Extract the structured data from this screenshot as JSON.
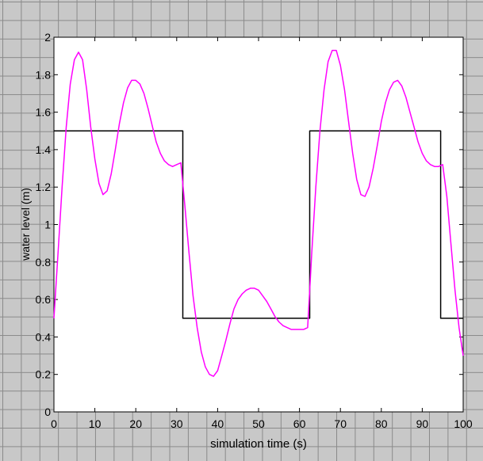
{
  "chart_data": {
    "type": "line",
    "xlabel": "simulation time (s)",
    "ylabel": "water level (m)",
    "xlim": [
      0,
      100
    ],
    "ylim": [
      0,
      2
    ],
    "x_ticks": [
      0,
      10,
      20,
      30,
      40,
      50,
      60,
      70,
      80,
      90,
      100
    ],
    "y_ticks": [
      0,
      0.2,
      0.4,
      0.6,
      0.8,
      1,
      1.2,
      1.4,
      1.6,
      1.8,
      2
    ],
    "grid": false,
    "series": [
      {
        "color": "#000000",
        "style": "step",
        "x": [
          0,
          31.5,
          31.5,
          62.5,
          62.5,
          94.5,
          94.5,
          100
        ],
        "y": [
          1.5,
          1.5,
          0.5,
          0.5,
          1.5,
          1.5,
          0.5,
          0.5
        ]
      },
      {
        "color": "#ff00ff",
        "style": "line",
        "x": [
          0,
          1,
          2,
          3,
          4,
          5,
          6,
          7,
          8,
          9,
          10,
          11,
          12,
          13,
          14,
          15,
          16,
          17,
          18,
          19,
          20,
          21,
          22,
          23,
          24,
          25,
          26,
          27,
          28,
          29,
          30,
          31,
          32,
          33,
          34,
          35,
          36,
          37,
          38,
          39,
          40,
          41,
          42,
          43,
          44,
          45,
          46,
          47,
          48,
          49,
          50,
          51,
          52,
          53,
          54,
          55,
          56,
          57,
          58,
          59,
          60,
          61,
          62,
          63,
          64,
          65,
          66,
          67,
          68,
          69,
          70,
          71,
          72,
          73,
          74,
          75,
          76,
          77,
          78,
          79,
          80,
          81,
          82,
          83,
          84,
          85,
          86,
          87,
          88,
          89,
          90,
          91,
          92,
          93,
          94,
          95,
          96,
          97,
          98,
          99,
          100
        ],
        "y": [
          0.5,
          0.85,
          1.2,
          1.52,
          1.75,
          1.88,
          1.92,
          1.88,
          1.72,
          1.52,
          1.35,
          1.22,
          1.16,
          1.18,
          1.27,
          1.4,
          1.54,
          1.65,
          1.73,
          1.77,
          1.77,
          1.75,
          1.7,
          1.62,
          1.53,
          1.44,
          1.38,
          1.34,
          1.32,
          1.31,
          1.32,
          1.33,
          1.1,
          0.85,
          0.62,
          0.45,
          0.32,
          0.24,
          0.2,
          0.19,
          0.22,
          0.3,
          0.38,
          0.47,
          0.55,
          0.6,
          0.63,
          0.65,
          0.66,
          0.66,
          0.65,
          0.62,
          0.59,
          0.55,
          0.51,
          0.48,
          0.46,
          0.45,
          0.44,
          0.44,
          0.44,
          0.44,
          0.45,
          0.85,
          1.2,
          1.5,
          1.72,
          1.87,
          1.93,
          1.93,
          1.85,
          1.72,
          1.55,
          1.38,
          1.24,
          1.16,
          1.15,
          1.2,
          1.3,
          1.42,
          1.55,
          1.65,
          1.72,
          1.76,
          1.77,
          1.74,
          1.68,
          1.6,
          1.52,
          1.44,
          1.38,
          1.34,
          1.32,
          1.31,
          1.31,
          1.32,
          1.15,
          0.9,
          0.65,
          0.45,
          0.3
        ]
      }
    ]
  }
}
